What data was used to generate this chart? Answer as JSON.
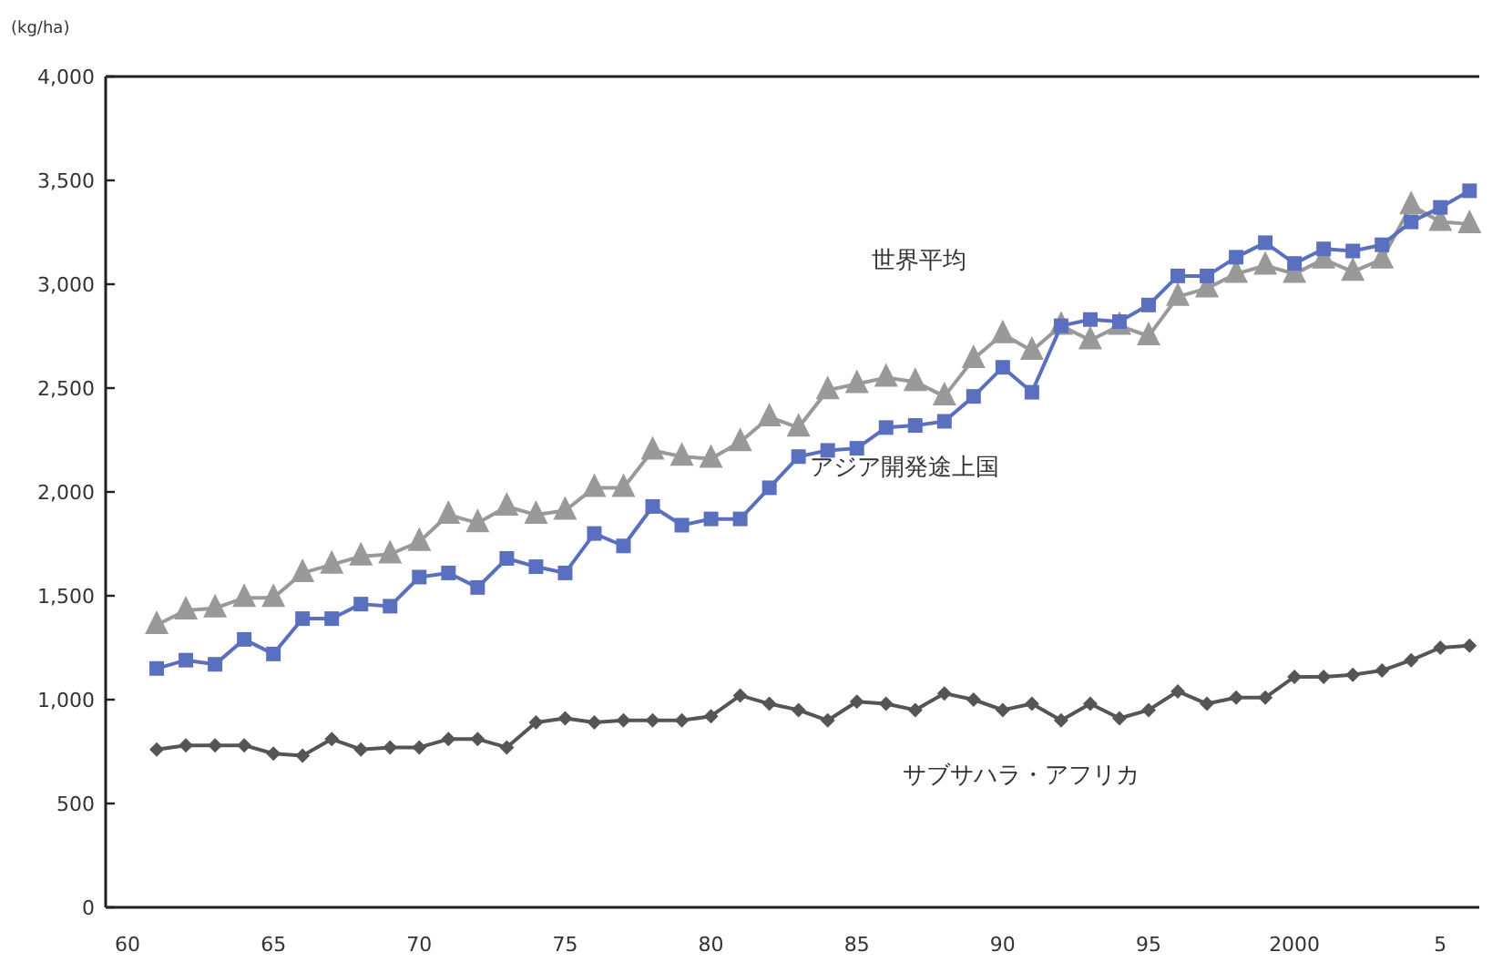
{
  "chart_data": {
    "type": "line",
    "ylabel": "(kg/ha)",
    "legend": false,
    "grid": false,
    "x": [
      "1961",
      "1962",
      "1963",
      "1964",
      "1965",
      "1966",
      "1967",
      "1968",
      "1969",
      "1970",
      "1971",
      "1972",
      "1973",
      "1974",
      "1975",
      "1976",
      "1977",
      "1978",
      "1979",
      "1980",
      "1981",
      "1982",
      "1983",
      "1984",
      "1985",
      "1986",
      "1987",
      "1988",
      "1989",
      "1990",
      "1991",
      "1992",
      "1993",
      "1994",
      "1995",
      "1996",
      "1997",
      "1998",
      "1999",
      "2000",
      "2001",
      "2002",
      "2003",
      "2004",
      "2005",
      "2006"
    ],
    "xlim": [
      "1959-04",
      "2006-05"
    ],
    "xticks": [
      {
        "value": "1960",
        "label": "60"
      },
      {
        "value": "1965",
        "label": "65"
      },
      {
        "value": "1970",
        "label": "70"
      },
      {
        "value": "1975",
        "label": "75"
      },
      {
        "value": "1980",
        "label": "80"
      },
      {
        "value": "1985",
        "label": "85"
      },
      {
        "value": "1990",
        "label": "90"
      },
      {
        "value": "1995",
        "label": "95"
      },
      {
        "value": "2000",
        "label": "2000"
      },
      {
        "value": "2005",
        "label": "5"
      }
    ],
    "ylim": [
      0,
      4000
    ],
    "yticks": [
      0,
      500,
      {
        "value": 1000,
        "label": "1,000"
      },
      {
        "value": 1500,
        "label": "1,500"
      },
      {
        "value": 2000,
        "label": "2,000"
      },
      {
        "value": 2500,
        "label": "2,500"
      },
      {
        "value": 3000,
        "label": "3,000"
      },
      {
        "value": 3500,
        "label": "3,500"
      },
      {
        "value": 4000,
        "label": "4,000"
      }
    ],
    "series": [
      {
        "name": "世界平均",
        "color": "#999999",
        "marker": "triangle",
        "values": [
          1360,
          1430,
          1440,
          1490,
          1490,
          1610,
          1650,
          1690,
          1700,
          1760,
          1890,
          1850,
          1930,
          1890,
          1910,
          2020,
          2020,
          2200,
          2170,
          2160,
          2240,
          2360,
          2310,
          2490,
          2520,
          2550,
          2530,
          2460,
          2640,
          2760,
          2680,
          2800,
          2730,
          2800,
          2750,
          2940,
          2980,
          3050,
          3090,
          3050,
          3120,
          3060,
          3120,
          3380,
          3300,
          3290
        ]
      },
      {
        "name": "アジア開発途上国",
        "color": "#5b6fbf",
        "marker": "square",
        "values": [
          1150,
          1190,
          1170,
          1290,
          1220,
          1390,
          1390,
          1460,
          1450,
          1590,
          1610,
          1540,
          1680,
          1640,
          1610,
          1800,
          1740,
          1930,
          1840,
          1870,
          1870,
          2020,
          2170,
          2200,
          2210,
          2310,
          2320,
          2340,
          2460,
          2600,
          2480,
          2800,
          2830,
          2820,
          2900,
          3040,
          3040,
          3130,
          3200,
          3100,
          3170,
          3160,
          3190,
          3300,
          3370,
          3450
        ]
      },
      {
        "name": "サブサハラ・アフリカ",
        "color": "#555555",
        "marker": "diamond",
        "values": [
          760,
          780,
          780,
          780,
          740,
          730,
          810,
          760,
          770,
          770,
          810,
          810,
          770,
          890,
          910,
          890,
          900,
          900,
          900,
          920,
          1020,
          980,
          950,
          900,
          990,
          980,
          950,
          1030,
          1000,
          950,
          980,
          900,
          980,
          910,
          950,
          1040,
          980,
          1010,
          1010,
          1110,
          1110,
          1120,
          1140,
          1190,
          1250,
          1260
        ]
      }
    ]
  }
}
